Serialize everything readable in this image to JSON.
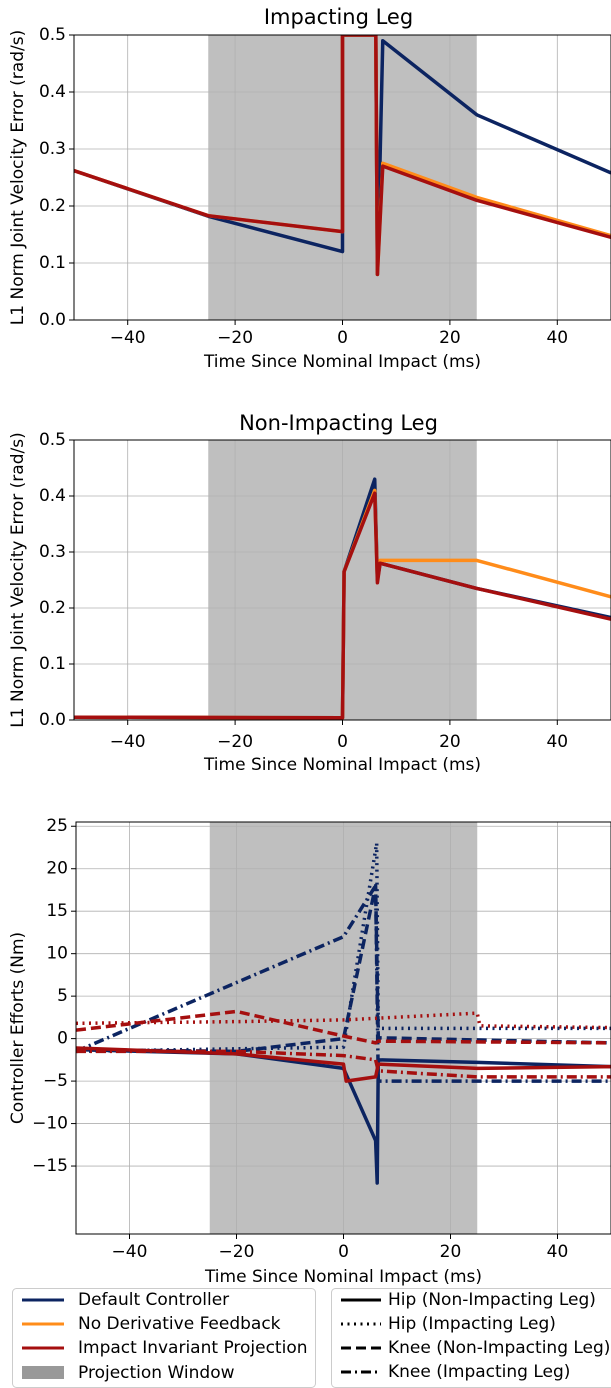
{
  "chart_data": [
    {
      "type": "line",
      "title": "Impacting Leg",
      "xlabel": "Time Since Nominal Impact (ms)",
      "ylabel": "L1 Norm Joint Velocity Error (rad/s)",
      "xlim": [
        -50,
        50
      ],
      "ylim": [
        0,
        0.5
      ],
      "xticks": [
        {
          "value": -40,
          "label": "−40"
        },
        {
          "value": -20,
          "label": "−20"
        },
        0,
        20,
        40
      ],
      "yticks": [
        {
          "value": 0,
          "label": "0.0"
        },
        0.1,
        0.2,
        0.3,
        0.4,
        0.5
      ],
      "grid": true,
      "window": {
        "label": "Projection Window",
        "range": [
          -25,
          25
        ],
        "color": "#808080"
      },
      "series": [
        {
          "name": "Default Controller",
          "color": "#0c2461",
          "dash": "solid",
          "x": [
            -50,
            -25,
            0,
            0,
            6.2,
            6.5,
            7.5,
            25,
            50
          ],
          "values": [
            0.262,
            0.182,
            0.12,
            0.5,
            0.5,
            0.08,
            0.49,
            0.36,
            0.258
          ]
        },
        {
          "name": "No Derivative Feedback",
          "color": "#ff8c1a",
          "dash": "solid",
          "x": [
            -50,
            -25,
            0,
            0,
            6.2,
            6.5,
            7.5,
            25,
            50
          ],
          "values": [
            0.262,
            0.183,
            0.155,
            0.5,
            0.5,
            0.08,
            0.275,
            0.215,
            0.148
          ]
        },
        {
          "name": "Impact Invariant Projection",
          "color": "#a50f0f",
          "dash": "solid",
          "x": [
            -50,
            -25,
            0,
            0,
            6.2,
            6.5,
            7.5,
            25,
            50
          ],
          "values": [
            0.262,
            0.183,
            0.155,
            0.5,
            0.5,
            0.08,
            0.27,
            0.21,
            0.145
          ]
        }
      ]
    },
    {
      "type": "line",
      "title": "Non-Impacting Leg",
      "xlabel": "Time Since Nominal Impact (ms)",
      "ylabel": "L1 Norm Joint Velocity Error (rad/s)",
      "xlim": [
        -50,
        50
      ],
      "ylim": [
        0,
        0.5
      ],
      "xticks": [
        {
          "value": -40,
          "label": "−40"
        },
        {
          "value": -20,
          "label": "−20"
        },
        0,
        20,
        40
      ],
      "yticks": [
        {
          "value": 0,
          "label": "0.0"
        },
        0.1,
        0.2,
        0.3,
        0.4,
        0.5
      ],
      "grid": true,
      "window": {
        "range": [
          -25,
          25
        ],
        "color": "#808080"
      },
      "series": [
        {
          "color": "#0c2461",
          "dash": "solid",
          "x": [
            -50,
            0,
            0.3,
            6,
            6.5,
            7,
            25,
            50
          ],
          "values": [
            0.005,
            0.004,
            0.265,
            0.43,
            0.25,
            0.28,
            0.235,
            0.183
          ]
        },
        {
          "color": "#ff8c1a",
          "dash": "solid",
          "x": [
            -50,
            0,
            0.3,
            6,
            6.5,
            7,
            25,
            50
          ],
          "values": [
            0.005,
            0.004,
            0.265,
            0.41,
            0.25,
            0.285,
            0.285,
            0.22
          ]
        },
        {
          "color": "#a50f0f",
          "dash": "solid",
          "x": [
            -50,
            0,
            0.3,
            6,
            6.5,
            7,
            25,
            50
          ],
          "values": [
            0.005,
            0.004,
            0.265,
            0.405,
            0.245,
            0.28,
            0.235,
            0.18
          ]
        }
      ]
    },
    {
      "type": "line",
      "xlabel": "Time Since Nominal Impact (ms)",
      "ylabel": "Controller Efforts (Nm)",
      "xlim": [
        -50,
        50
      ],
      "ylim": [
        -23,
        25.5
      ],
      "xticks": [
        {
          "value": -40,
          "label": "−40"
        },
        {
          "value": -20,
          "label": "−20"
        },
        0,
        20,
        40
      ],
      "yticks": [
        {
          "value": -15,
          "label": "−15"
        },
        {
          "value": -10,
          "label": "−10"
        },
        {
          "value": -5,
          "label": "−5"
        },
        0,
        5,
        10,
        15,
        20,
        25
      ],
      "grid": true,
      "window": {
        "range": [
          -25,
          25
        ],
        "color": "#808080"
      },
      "series": [
        {
          "color": "#0c2461",
          "dash": "solid",
          "x": [
            -50,
            -20,
            0,
            6,
            6.3,
            6.5,
            25,
            50
          ],
          "values": [
            -1.3,
            -1.8,
            -3.5,
            -12,
            -17,
            -2.5,
            -2.8,
            -3.3
          ]
        },
        {
          "color": "#0c2461",
          "dash": "dotted",
          "x": [
            -50,
            0,
            6.2,
            6.5,
            50
          ],
          "values": [
            -1.5,
            -1,
            23,
            1.2,
            1.2
          ]
        },
        {
          "color": "#0c2461",
          "dash": "dashed",
          "x": [
            -50,
            -20,
            0,
            6,
            6.5,
            50
          ],
          "values": [
            -1.3,
            -1.5,
            0,
            18,
            0.1,
            -0.5
          ]
        },
        {
          "color": "#0c2461",
          "dash": "dashdot",
          "x": [
            -50,
            0,
            6,
            6.5,
            50
          ],
          "values": [
            -1.5,
            12,
            18,
            -5,
            -5
          ]
        },
        {
          "color": "#a50f0f",
          "dash": "solid",
          "x": [
            -50,
            -20,
            0,
            0.5,
            6,
            6.5,
            25,
            50
          ],
          "values": [
            -1.1,
            -1.8,
            -3,
            -5,
            -4.5,
            -3,
            -3.5,
            -3.3
          ]
        },
        {
          "color": "#a50f0f",
          "dash": "dotted",
          "x": [
            -50,
            -20,
            0,
            25,
            25.5,
            50
          ],
          "values": [
            1.8,
            2,
            2.2,
            3,
            1.5,
            1.3
          ]
        },
        {
          "color": "#a50f0f",
          "dash": "dashed",
          "x": [
            -50,
            -20,
            0,
            6,
            6.5,
            50
          ],
          "values": [
            1,
            3.2,
            0.3,
            -0.5,
            -0.3,
            -0.5
          ]
        },
        {
          "color": "#a50f0f",
          "dash": "dashdot",
          "x": [
            -50,
            -20,
            0,
            6,
            6.5,
            25,
            50
          ],
          "values": [
            -1.5,
            -1.5,
            -2,
            -2.5,
            -3.8,
            -4.5,
            -4.5
          ]
        }
      ]
    }
  ],
  "line_style_legend": [
    {
      "label": "Hip (Non-Impacting Leg)",
      "dash": "solid"
    },
    {
      "label": "Hip (Impacting Leg)",
      "dash": "dotted"
    },
    {
      "label": "Knee (Non-Impacting Leg)",
      "dash": "dashed"
    },
    {
      "label": "Knee (Impacting Leg)",
      "dash": "dashdot"
    }
  ]
}
